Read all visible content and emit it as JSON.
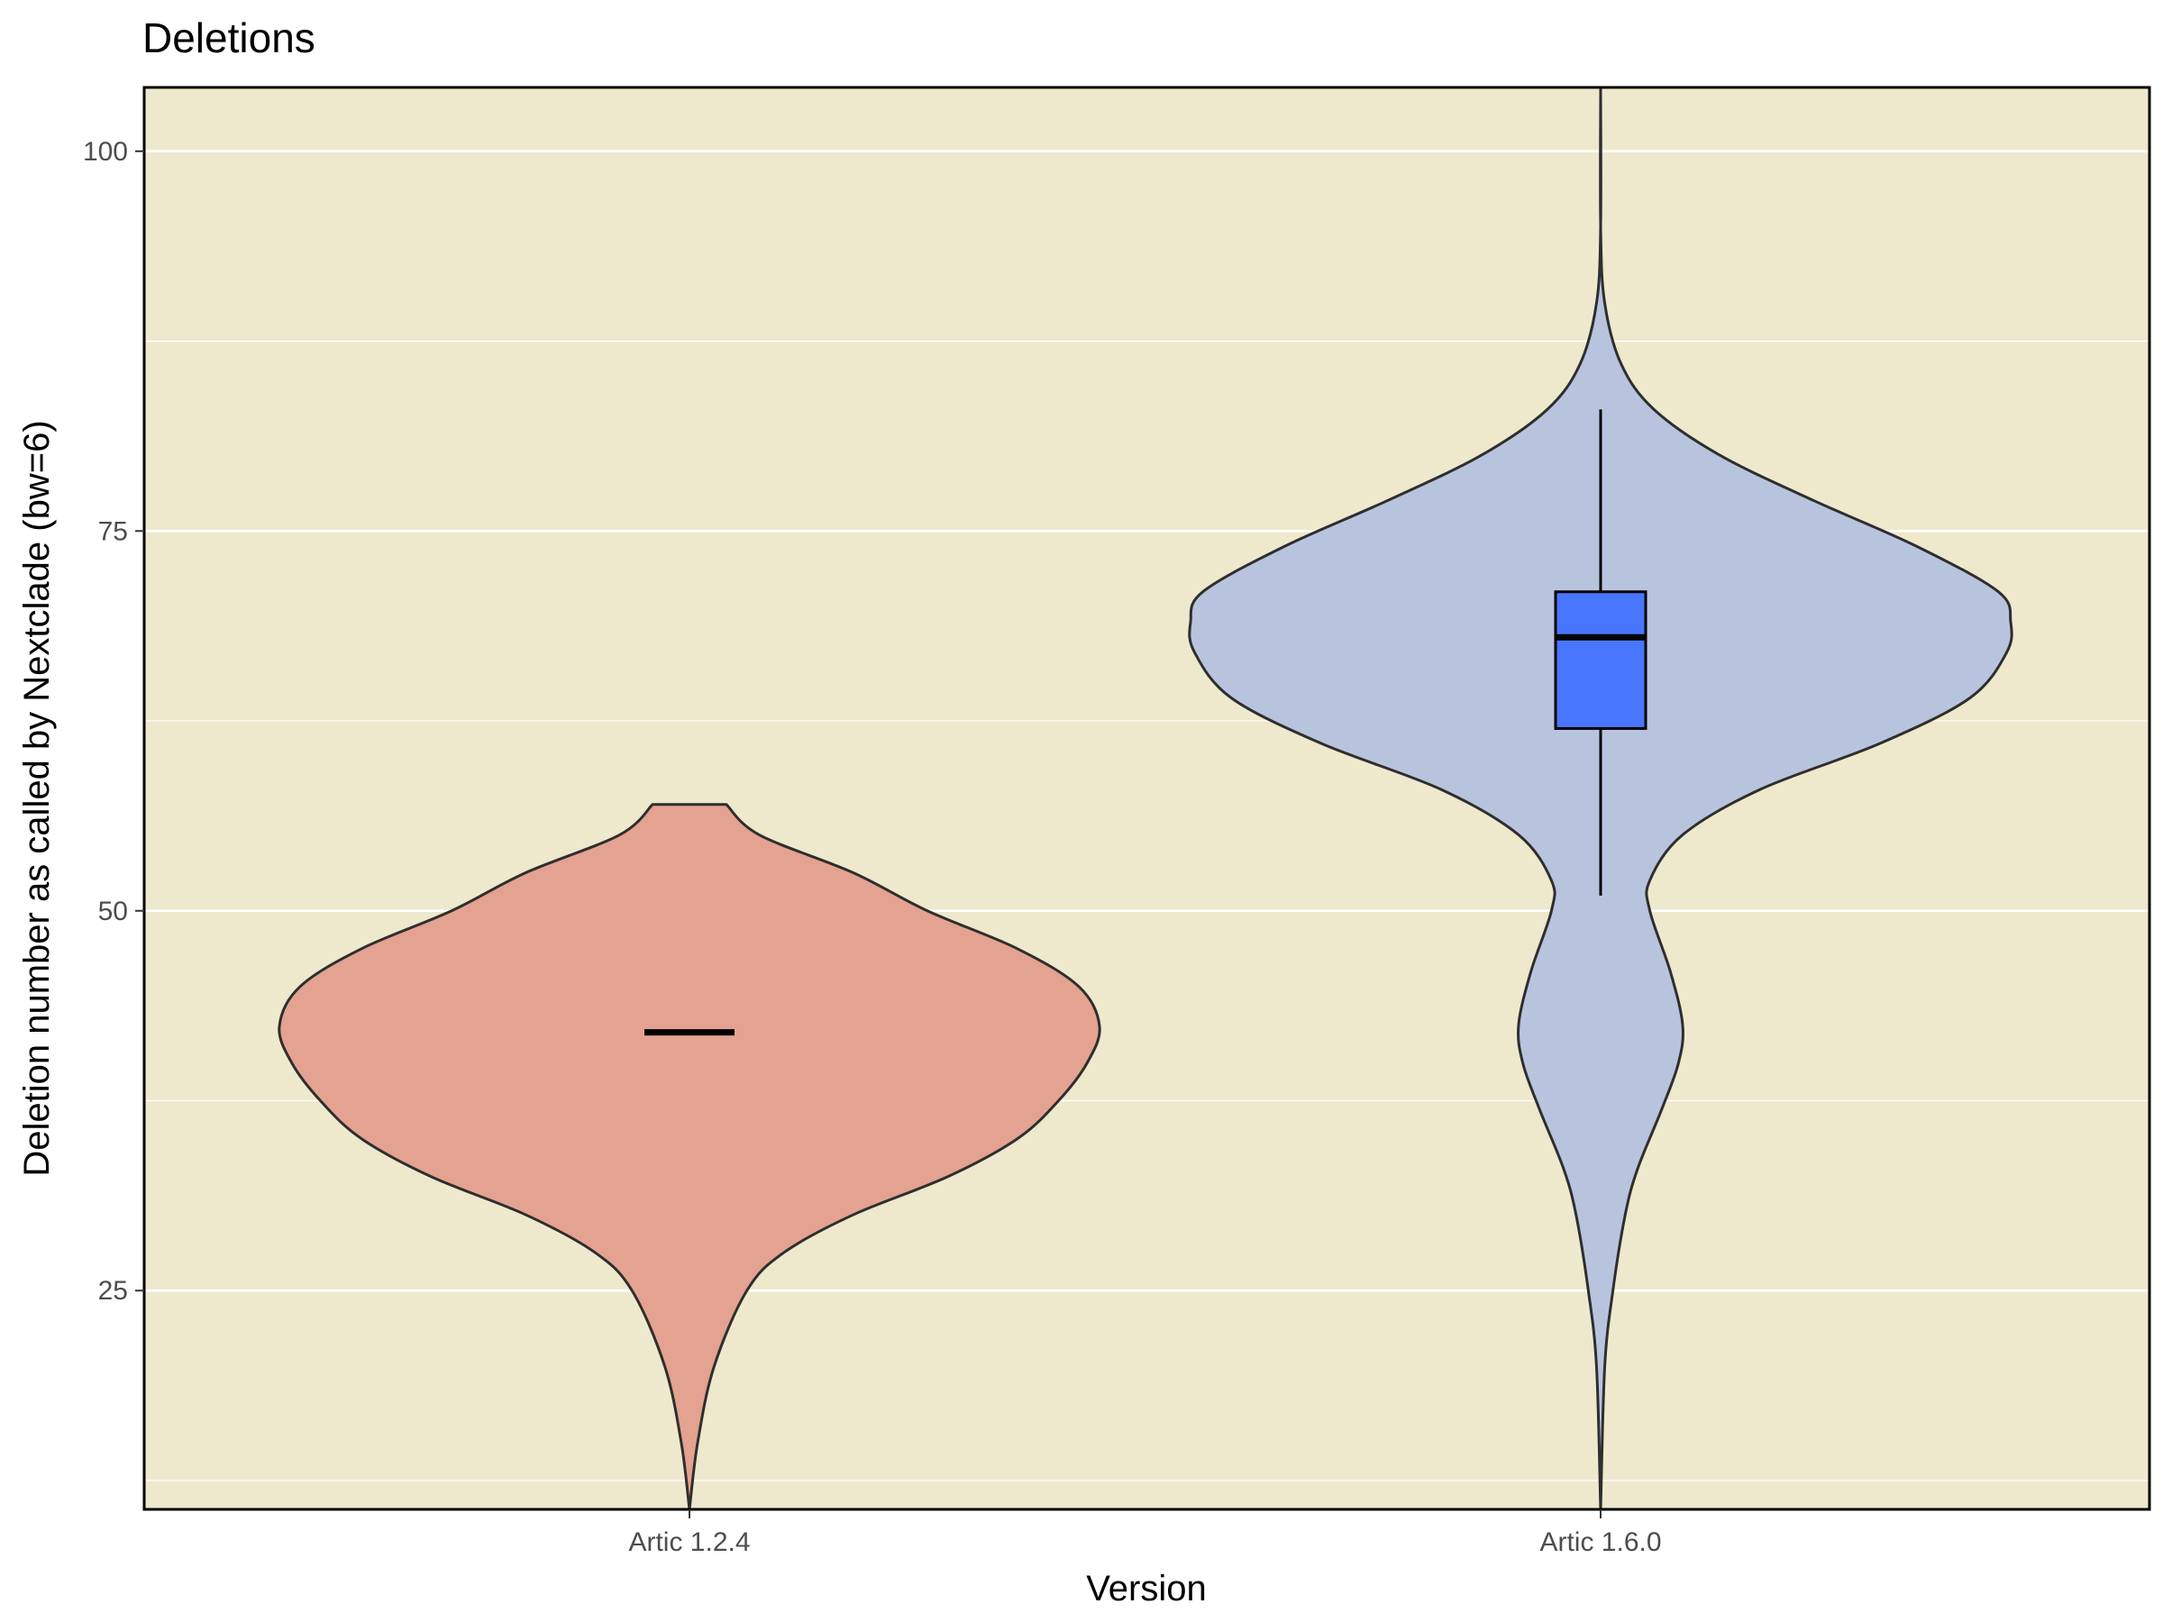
{
  "chart_data": {
    "type": "violin",
    "title": "Deletions",
    "xlabel": "Version",
    "ylabel": "Deletion number as called by Nextclade (bw=6)",
    "ylim": [
      10.6,
      104.2
    ],
    "yticks": [
      25,
      50,
      75,
      100
    ],
    "y_minor_gridlines": [
      12.5,
      37.5,
      62.5,
      87.5
    ],
    "grid": true,
    "legend": "none",
    "panel_background": "#EEE8CD",
    "categories": [
      "Artic 1.2.4",
      "Artic 1.6.0"
    ],
    "series": [
      {
        "category": "Artic 1.2.4",
        "fill": "#E4A290",
        "y_range": [
          10.6,
          57
        ],
        "peak_at": 42.4,
        "box": {
          "min": 42,
          "q1": 42,
          "median": 42,
          "q3": 42,
          "max": 42
        },
        "box_fill": "#F8766D",
        "density": [
          [
            10.6,
            0.0
          ],
          [
            15,
            0.02
          ],
          [
            20,
            0.06
          ],
          [
            25,
            0.14
          ],
          [
            27.5,
            0.23
          ],
          [
            30,
            0.4
          ],
          [
            32.5,
            0.63
          ],
          [
            35,
            0.8
          ],
          [
            37.5,
            0.9
          ],
          [
            40,
            0.97
          ],
          [
            42.4,
            1.0
          ],
          [
            45,
            0.95
          ],
          [
            47.5,
            0.8
          ],
          [
            50,
            0.58
          ],
          [
            52.5,
            0.4
          ],
          [
            55,
            0.17
          ],
          [
            57,
            0.09
          ]
        ]
      },
      {
        "category": "Artic 1.6.0",
        "fill": "#B8C4DE",
        "y_range": [
          10.6,
          104.2
        ],
        "peak_at": 69,
        "box": {
          "min": 51,
          "q1": 62,
          "median": 68,
          "q3": 71,
          "max": 83
        },
        "box_fill": "#4876FF",
        "density": [
          [
            10.6,
            0.0
          ],
          [
            20,
            0.01
          ],
          [
            25,
            0.03
          ],
          [
            30,
            0.06
          ],
          [
            33,
            0.09
          ],
          [
            37,
            0.15
          ],
          [
            40,
            0.19
          ],
          [
            42.5,
            0.2
          ],
          [
            46,
            0.17
          ],
          [
            50,
            0.12
          ],
          [
            52,
            0.12
          ],
          [
            55,
            0.2
          ],
          [
            58,
            0.39
          ],
          [
            61,
            0.68
          ],
          [
            64,
            0.9
          ],
          [
            67,
            0.99
          ],
          [
            69,
            1.0
          ],
          [
            71,
            0.97
          ],
          [
            74,
            0.77
          ],
          [
            77,
            0.52
          ],
          [
            80,
            0.29
          ],
          [
            83,
            0.13
          ],
          [
            86,
            0.05
          ],
          [
            90,
            0.01
          ],
          [
            95,
            0.0
          ],
          [
            104.2,
            0.0
          ]
        ]
      }
    ]
  }
}
